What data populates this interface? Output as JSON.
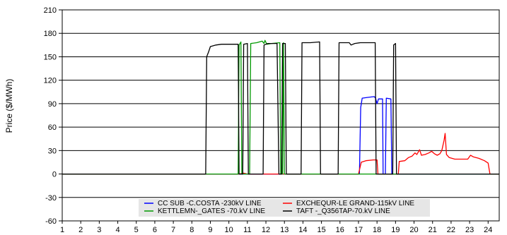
{
  "chart_data": {
    "type": "line",
    "title": "",
    "xlabel": "",
    "ylabel": "Price ($/MWh)",
    "xlim": [
      1,
      24.6
    ],
    "ylim": [
      -60,
      210
    ],
    "yticks": [
      210,
      180,
      150,
      120,
      90,
      60,
      30,
      0,
      -30,
      -60
    ],
    "xticks": [
      1,
      2,
      3,
      4,
      5,
      6,
      7,
      8,
      9,
      10,
      11,
      12,
      13,
      14,
      15,
      16,
      17,
      18,
      19,
      20,
      21,
      22,
      23,
      24
    ],
    "grid": "horizontal",
    "legend_position": "bottom-center",
    "series": [
      {
        "name": "CC SUB -C.COSTA -230kV LINE",
        "color": "#0000ff",
        "points": [
          [
            1,
            0
          ],
          [
            17.05,
            0
          ],
          [
            17.12,
            85
          ],
          [
            17.2,
            97
          ],
          [
            17.5,
            98
          ],
          [
            17.85,
            99
          ],
          [
            17.92,
            97
          ],
          [
            18.0,
            90
          ],
          [
            18.08,
            96
          ],
          [
            18.3,
            96
          ],
          [
            18.33,
            0
          ],
          [
            18.45,
            0
          ],
          [
            18.5,
            97
          ],
          [
            18.75,
            96
          ],
          [
            18.8,
            0
          ],
          [
            24.6,
            0
          ]
        ]
      },
      {
        "name": "EXCHEQUR-LE GRAND-115kV LINE",
        "color": "#ff0000",
        "points": [
          [
            1,
            0
          ],
          [
            10.55,
            0
          ],
          [
            10.8,
            1
          ],
          [
            11.0,
            0
          ],
          [
            17.0,
            0
          ],
          [
            17.15,
            15
          ],
          [
            17.4,
            17
          ],
          [
            17.8,
            18
          ],
          [
            18.0,
            18
          ],
          [
            18.05,
            0
          ],
          [
            19.15,
            0
          ],
          [
            19.2,
            16
          ],
          [
            19.5,
            17
          ],
          [
            19.7,
            21
          ],
          [
            19.9,
            23
          ],
          [
            20.05,
            27
          ],
          [
            20.15,
            25
          ],
          [
            20.3,
            31
          ],
          [
            20.4,
            24
          ],
          [
            20.6,
            25
          ],
          [
            20.8,
            27
          ],
          [
            20.95,
            29
          ],
          [
            21.1,
            26
          ],
          [
            21.25,
            24
          ],
          [
            21.4,
            26
          ],
          [
            21.5,
            30
          ],
          [
            21.62,
            43
          ],
          [
            21.68,
            52
          ],
          [
            21.75,
            25
          ],
          [
            21.9,
            21
          ],
          [
            22.2,
            19
          ],
          [
            22.5,
            19
          ],
          [
            22.9,
            19
          ],
          [
            23.05,
            24
          ],
          [
            23.2,
            22
          ],
          [
            23.5,
            20
          ],
          [
            23.8,
            17
          ],
          [
            24.0,
            14
          ],
          [
            24.1,
            0
          ],
          [
            24.6,
            0
          ]
        ]
      },
      {
        "name": "KETTLEMN-_GATES -70.kV LINE",
        "color": "#009900",
        "points": [
          [
            1,
            0
          ],
          [
            10.5,
            0
          ],
          [
            10.55,
            165
          ],
          [
            10.65,
            169
          ],
          [
            10.7,
            0
          ],
          [
            11.12,
            0
          ],
          [
            11.18,
            167
          ],
          [
            11.5,
            168
          ],
          [
            11.8,
            170
          ],
          [
            11.9,
            167
          ],
          [
            11.95,
            171
          ],
          [
            12.05,
            166
          ],
          [
            12.3,
            167
          ],
          [
            12.75,
            168
          ],
          [
            12.8,
            0
          ],
          [
            12.9,
            0
          ],
          [
            12.95,
            168
          ],
          [
            13.0,
            0
          ],
          [
            24.6,
            0
          ]
        ]
      },
      {
        "name": "TAFT -_Q356TAP-70.kV LINE",
        "color": "#000000",
        "points": [
          [
            1,
            0
          ],
          [
            8.75,
            0
          ],
          [
            8.8,
            150
          ],
          [
            8.9,
            156
          ],
          [
            9.0,
            163
          ],
          [
            9.3,
            165
          ],
          [
            9.6,
            166
          ],
          [
            9.9,
            166
          ],
          [
            10.2,
            166
          ],
          [
            10.5,
            166
          ],
          [
            10.55,
            0
          ],
          [
            10.75,
            0
          ],
          [
            10.8,
            166
          ],
          [
            11.0,
            167
          ],
          [
            11.05,
            0
          ],
          [
            11.85,
            0
          ],
          [
            11.9,
            165
          ],
          [
            12.1,
            167
          ],
          [
            12.6,
            167
          ],
          [
            12.7,
            0
          ],
          [
            12.85,
            0
          ],
          [
            12.9,
            167
          ],
          [
            13.05,
            167
          ],
          [
            13.1,
            0
          ],
          [
            13.9,
            0
          ],
          [
            13.95,
            168
          ],
          [
            14.4,
            168
          ],
          [
            14.9,
            169
          ],
          [
            14.95,
            0
          ],
          [
            15.9,
            0
          ],
          [
            15.95,
            168
          ],
          [
            16.5,
            168
          ],
          [
            16.6,
            165
          ],
          [
            16.8,
            167
          ],
          [
            17.1,
            168
          ],
          [
            17.5,
            168
          ],
          [
            17.9,
            168
          ],
          [
            17.95,
            0
          ],
          [
            18.85,
            0
          ],
          [
            18.9,
            165
          ],
          [
            19.0,
            167
          ],
          [
            19.05,
            0
          ],
          [
            24.6,
            0
          ]
        ]
      }
    ]
  }
}
